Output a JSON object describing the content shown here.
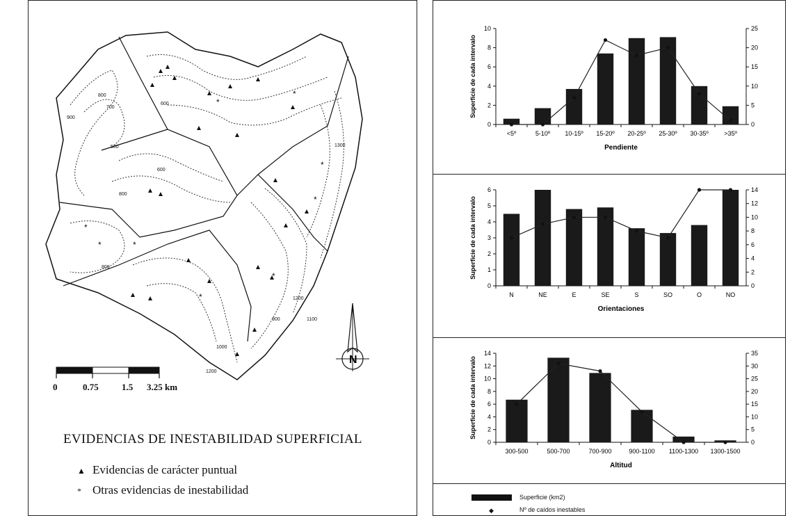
{
  "map": {
    "title": "EVIDENCIAS DE INESTABILIDAD SUPERFICIAL",
    "legend": [
      {
        "symbol": "▲",
        "label": "Evidencias de carácter puntual"
      },
      {
        "symbol": "*",
        "label": "Otras evidencias de inestabilidad"
      }
    ],
    "scale_labels": [
      "0",
      "0.75",
      "1.5",
      "3.25 km"
    ],
    "contour_labels": [
      "800",
      "700",
      "500",
      "600",
      "800",
      "900",
      "600",
      "800",
      "1000",
      "1100",
      "1200",
      "1300",
      "900",
      "1200"
    ],
    "north_label": "N"
  },
  "legend_bottom": {
    "bar_label": "Superficie (km2)",
    "point_label": "Nº de caídos inestables"
  },
  "chart_data": [
    {
      "type": "bar",
      "categories": [
        "<5º",
        "5-10º",
        "10-15º",
        "15-20º",
        "20-25º",
        "25-30º",
        "30-35º",
        ">35º"
      ],
      "series": [
        {
          "name": "Superficie (km2)",
          "axis": "left",
          "type": "bar",
          "values": [
            0.6,
            1.7,
            3.7,
            7.4,
            9.0,
            9.1,
            4.0,
            1.9
          ]
        },
        {
          "name": "Nº de caídos inestables",
          "axis": "right",
          "type": "line",
          "values": [
            0,
            0,
            7,
            22,
            18,
            20,
            8,
            1
          ]
        }
      ],
      "xlabel": "Pendiente",
      "ylabel": "Superficie de cada intervalo",
      "ylim": [
        0,
        10
      ],
      "yticks": [
        0,
        2,
        4,
        6,
        8,
        10
      ],
      "y2lim": [
        0,
        25
      ],
      "y2ticks": [
        0,
        5,
        10,
        15,
        20,
        25
      ]
    },
    {
      "type": "bar",
      "categories": [
        "N",
        "NE",
        "E",
        "SE",
        "S",
        "SO",
        "O",
        "NO"
      ],
      "series": [
        {
          "name": "Superficie (km2)",
          "axis": "left",
          "type": "bar",
          "values": [
            4.5,
            6.0,
            4.8,
            4.9,
            3.6,
            3.3,
            3.8,
            6.0
          ]
        },
        {
          "name": "Nº de caídos inestables",
          "axis": "right",
          "type": "line",
          "values": [
            7,
            9,
            10,
            10,
            8,
            7,
            14,
            14
          ]
        }
      ],
      "xlabel": "Orientaciones",
      "ylabel": "Superficie de cada intervalo",
      "ylim": [
        0,
        6
      ],
      "yticks": [
        0,
        1,
        2,
        3,
        4,
        5,
        6
      ],
      "y2lim": [
        0,
        14
      ],
      "y2ticks": [
        0,
        2,
        4,
        6,
        8,
        10,
        12,
        14
      ]
    },
    {
      "type": "bar",
      "categories": [
        "300-500",
        "500-700",
        "700-900",
        "900-1100",
        "1100-1300",
        "1300-1500"
      ],
      "series": [
        {
          "name": "Superficie (km2)",
          "axis": "left",
          "type": "bar",
          "values": [
            6.7,
            13.3,
            10.9,
            5.1,
            0.9,
            0.3
          ]
        },
        {
          "name": "Nº de caídos inestables",
          "axis": "right",
          "type": "line",
          "values": [
            15,
            31,
            28,
            12,
            0,
            0
          ]
        }
      ],
      "xlabel": "Altitud",
      "ylabel": "Superficie de cada intervalo",
      "ylim": [
        0,
        14
      ],
      "yticks": [
        0,
        2,
        4,
        6,
        8,
        10,
        12,
        14
      ],
      "y2lim": [
        0,
        35
      ],
      "y2ticks": [
        0,
        5,
        10,
        15,
        20,
        25,
        30,
        35
      ]
    }
  ]
}
